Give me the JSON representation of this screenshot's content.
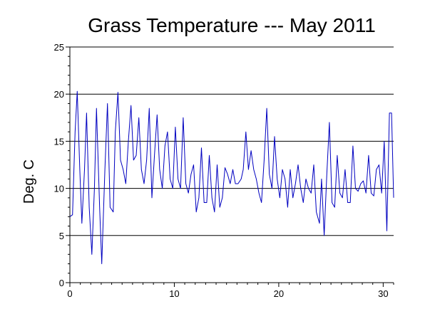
{
  "chart_data": {
    "type": "line",
    "title": "Grass Temperature --- May 2011",
    "xlabel": "",
    "ylabel": "Deg. C",
    "xlim": [
      0,
      31
    ],
    "ylim": [
      0,
      25
    ],
    "x_ticks": [
      0,
      10,
      20,
      30
    ],
    "y_ticks": [
      0,
      5,
      10,
      15,
      20,
      25
    ],
    "grid": "horizontal",
    "colors": {
      "line": "#0000c0",
      "axis": "#000000",
      "grid": "#000000"
    },
    "series": [
      {
        "x": [
          0,
          0.25,
          0.5,
          0.7,
          0.95,
          1.15,
          1.4,
          1.6,
          1.85,
          2.1,
          2.35,
          2.55,
          2.85,
          3.05,
          3.35,
          3.6,
          3.85,
          4.15,
          4.35,
          4.6,
          4.85,
          5.1,
          5.35,
          5.6,
          5.85,
          6.1,
          6.35,
          6.6,
          6.85,
          7.1,
          7.35,
          7.6,
          7.85,
          8.1,
          8.35,
          8.6,
          8.85,
          9.1,
          9.35,
          9.6,
          9.85,
          10.1,
          10.35,
          10.6,
          10.85,
          11.1,
          11.35,
          11.6,
          11.85,
          12.1,
          12.35,
          12.6,
          12.85,
          13.1,
          13.35,
          13.6,
          13.85,
          14.1,
          14.35,
          14.6,
          14.85,
          15.1,
          15.35,
          15.6,
          15.85,
          16.1,
          16.4,
          16.6,
          16.85,
          17.1,
          17.35,
          17.6,
          17.85,
          18.1,
          18.35,
          18.6,
          18.85,
          19.1,
          19.35,
          19.6,
          19.85,
          20.1,
          20.35,
          20.6,
          20.85,
          21.1,
          21.35,
          21.6,
          21.85,
          22.1,
          22.35,
          22.6,
          22.85,
          23.1,
          23.35,
          23.6,
          23.9,
          24.1,
          24.35,
          24.6,
          24.85,
          25.1,
          25.35,
          25.6,
          25.85,
          26.1,
          26.35,
          26.6,
          26.85,
          27.1,
          27.35,
          27.6,
          27.85,
          28.1,
          28.35,
          28.6,
          28.85,
          29.1,
          29.35,
          29.6,
          29.85,
          30.1,
          30.35,
          30.6,
          30.8,
          31.0
        ],
        "y": [
          7.0,
          7.2,
          16.0,
          20.3,
          12.0,
          6.3,
          12.0,
          18.0,
          8.0,
          3.0,
          10.0,
          18.5,
          8.0,
          2.0,
          12.0,
          19.0,
          8.0,
          7.5,
          16.0,
          20.2,
          13.0,
          12.0,
          10.5,
          15.0,
          18.8,
          13.0,
          13.5,
          17.5,
          12.0,
          10.5,
          13.0,
          18.5,
          9.0,
          13.5,
          17.8,
          12.0,
          10.0,
          14.5,
          16.0,
          11.0,
          10.0,
          16.5,
          11.0,
          10.0,
          17.5,
          10.5,
          9.5,
          11.5,
          12.5,
          7.5,
          9.0,
          14.3,
          8.5,
          8.5,
          13.5,
          9.0,
          7.5,
          12.5,
          8.0,
          9.0,
          12.2,
          11.5,
          10.5,
          12.0,
          10.5,
          10.5,
          11.0,
          12.0,
          16.0,
          12.0,
          14.0,
          12.0,
          11.0,
          9.5,
          8.5,
          13.0,
          18.5,
          11.5,
          10.0,
          15.5,
          11.0,
          9.0,
          12.0,
          11.0,
          8.0,
          12.0,
          9.0,
          10.5,
          12.5,
          10.0,
          8.5,
          11.0,
          10.0,
          9.5,
          12.5,
          7.5,
          6.3,
          11.0,
          5.0,
          11.5,
          17.0,
          8.5,
          8.0,
          13.5,
          9.5,
          9.0,
          12.0,
          8.5,
          8.5,
          14.5,
          10.0,
          9.7,
          10.5,
          10.8,
          9.5,
          13.5,
          9.5,
          9.2,
          12.0,
          12.5,
          9.5,
          15.0,
          5.5,
          18.0,
          18.0,
          9.0
        ]
      }
    ]
  }
}
